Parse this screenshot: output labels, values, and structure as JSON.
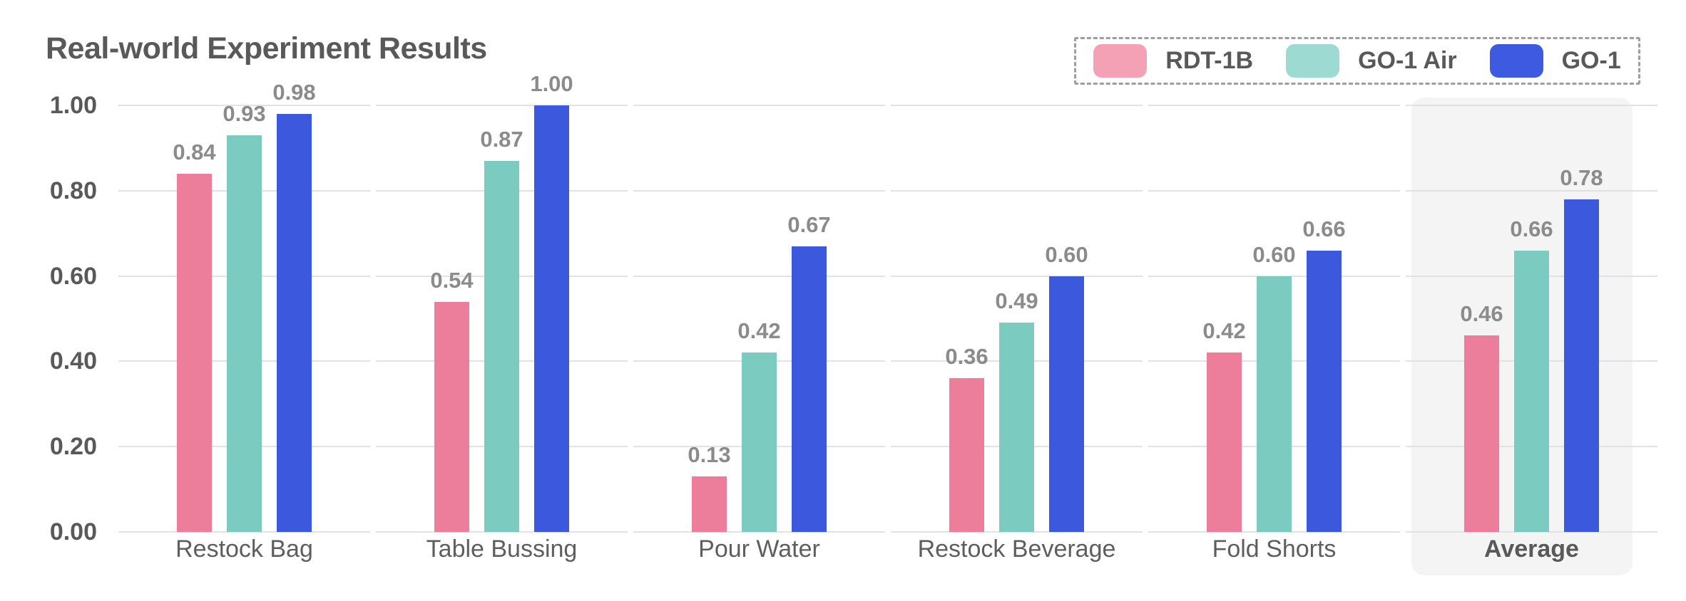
{
  "title": "Real-world Experiment Results",
  "chart_data": {
    "type": "bar",
    "title": "Real-world Experiment Results",
    "categories": [
      "Restock Bag",
      "Table Bussing",
      "Pour Water",
      "Restock Beverage",
      "Fold Shorts",
      "Average"
    ],
    "series": [
      {
        "name": "RDT-1B",
        "color": "#EC7D9B",
        "legend_color": "#F4A0B5",
        "values": [
          0.84,
          0.54,
          0.13,
          0.36,
          0.42,
          0.46
        ],
        "labels": [
          "0.84",
          "0.54",
          "0.13",
          "0.36",
          "0.42",
          "0.46"
        ]
      },
      {
        "name": "GO-1 Air",
        "color": "#7BCBC1",
        "legend_color": "#9DDAD2",
        "values": [
          0.93,
          0.87,
          0.42,
          0.49,
          0.6,
          0.66
        ],
        "labels": [
          "0.93",
          "0.87",
          "0.42",
          "0.49",
          "0.60",
          "0.66"
        ]
      },
      {
        "name": "GO-1",
        "color": "#3C59DE",
        "legend_color": "#3D5AE0",
        "values": [
          0.98,
          1.0,
          0.67,
          0.6,
          0.66,
          0.78
        ],
        "labels": [
          "0.98",
          "1.00",
          "0.67",
          "0.60",
          "0.66",
          "0.78"
        ]
      }
    ],
    "y_tick_values": [
      0.0,
      0.2,
      0.4,
      0.6,
      0.8,
      1.0
    ],
    "y_tick_labels": [
      "0.00",
      "0.20",
      "0.40",
      "0.60",
      "0.80",
      "1.00"
    ],
    "ylim": [
      0.0,
      1.0
    ],
    "grid": true,
    "legend_position": "top-right",
    "highlighted_category": "Average"
  },
  "colors": {
    "background": "#FFFFFF",
    "gridline": "#E2E2E2",
    "highlight_bg": "#F4F4F4",
    "title_text": "#595959",
    "axis_tick_text": "#595959",
    "category_text": "#5E5E5E",
    "value_label_text": "#8B8B8B",
    "legend_border": "#9E9E9E",
    "legend_label_text": "#595959"
  }
}
